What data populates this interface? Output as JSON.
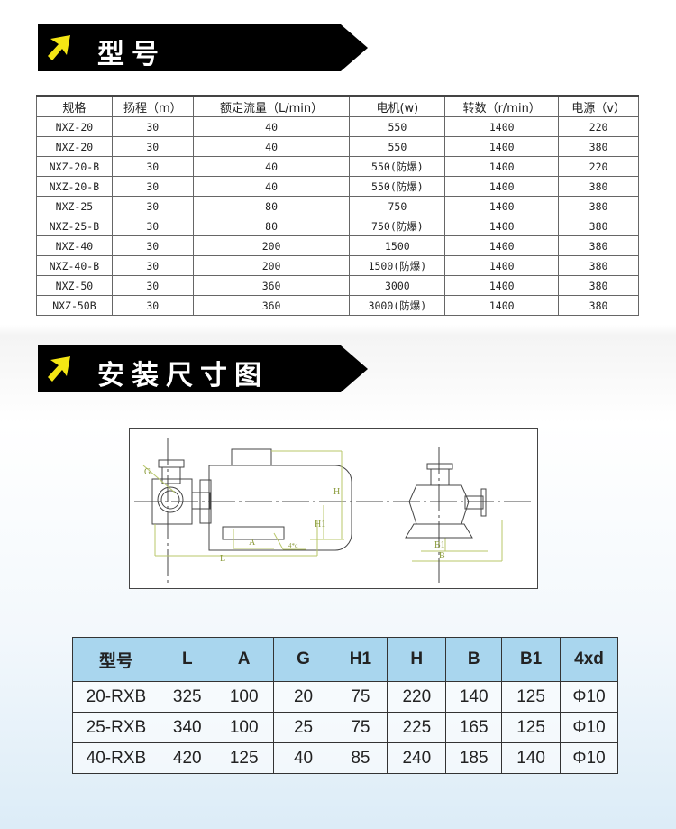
{
  "section1": {
    "title": "型号"
  },
  "section2": {
    "title": "安装尺寸图"
  },
  "spec_table": {
    "headers": [
      "规格",
      "扬程（m）",
      "额定流量（L/min）",
      "电机(w)",
      "转数（r/min）",
      "电源（v）"
    ],
    "rows": [
      [
        "NXZ-20",
        "30",
        "40",
        "550",
        "1400",
        "220"
      ],
      [
        "NXZ-20",
        "30",
        "40",
        "550",
        "1400",
        "380"
      ],
      [
        "NXZ-20-B",
        "30",
        "40",
        "550(防爆)",
        "1400",
        "220"
      ],
      [
        "NXZ-20-B",
        "30",
        "40",
        "550(防爆)",
        "1400",
        "380"
      ],
      [
        "NXZ-25",
        "30",
        "80",
        "750",
        "1400",
        "380"
      ],
      [
        "NXZ-25-B",
        "30",
        "80",
        "750(防爆)",
        "1400",
        "380"
      ],
      [
        "NXZ-40",
        "30",
        "200",
        "1500",
        "1400",
        "380"
      ],
      [
        "NXZ-40-B",
        "30",
        "200",
        "1500(防爆)",
        "1400",
        "380"
      ],
      [
        "NXZ-50",
        "30",
        "360",
        "3000",
        "1400",
        "380"
      ],
      [
        "NXZ-50B",
        "30",
        "360",
        "3000(防爆)",
        "1400",
        "380"
      ]
    ]
  },
  "diagram": {
    "labels": {
      "G": "G",
      "H": "H",
      "H1": "H1",
      "A": "A",
      "L": "L",
      "d": "4*d",
      "B1": "B1",
      "B": "B"
    }
  },
  "dim_table": {
    "headers": [
      "型号",
      "L",
      "A",
      "G",
      "H1",
      "H",
      "B",
      "B1",
      "4xd"
    ],
    "rows": [
      [
        "20-RXB",
        "325",
        "100",
        "20",
        "75",
        "220",
        "140",
        "125",
        "Φ10"
      ],
      [
        "25-RXB",
        "340",
        "100",
        "25",
        "75",
        "225",
        "165",
        "125",
        "Φ10"
      ],
      [
        "40-RXB",
        "420",
        "125",
        "40",
        "85",
        "240",
        "185",
        "140",
        "Φ10"
      ]
    ]
  },
  "colors": {
    "banner": "#000000",
    "arrow": "#f5e614",
    "header_fill": "#a9d6ee"
  }
}
